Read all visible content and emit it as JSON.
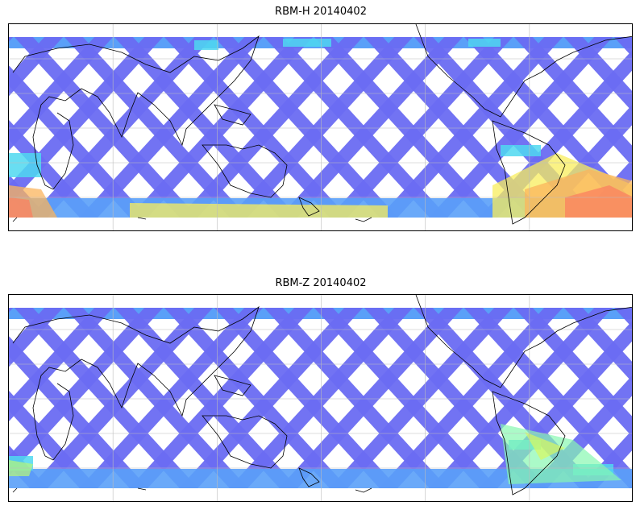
{
  "panels": [
    {
      "title": "RBM-H 20140402",
      "colors": {
        "track": "#6a6cf2",
        "track_light": "#5aa0f8",
        "track_cyan": "#4fd8f0",
        "warm_1": "#f8ee5c",
        "warm_2": "#fbb45c",
        "warm_3": "#fb8060"
      }
    },
    {
      "title": "RBM-Z 20140402",
      "colors": {
        "track": "#6a6cf2",
        "track_light": "#5aa0f8",
        "track_cyan": "#4fd8f0",
        "warm_1": "#b8f878",
        "warm_2": "#88f8b0",
        "warm_3": "#d8f860"
      }
    }
  ],
  "map": {
    "projection": "plate-carree",
    "coastline_color": "#000000",
    "gridline_color": "#bdbdbd",
    "background": "#ffffff"
  }
}
